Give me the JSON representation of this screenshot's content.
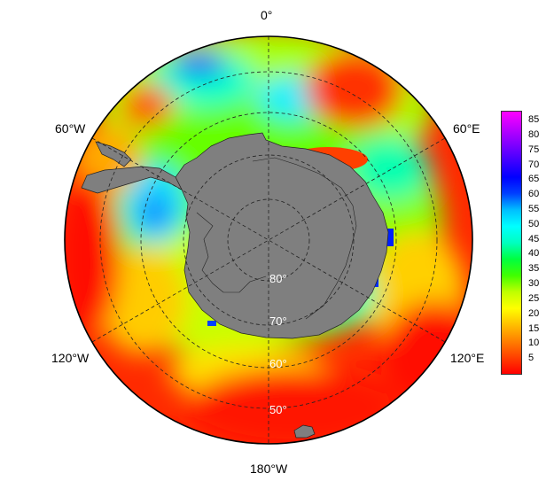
{
  "map": {
    "projection": "south-polar-stereographic",
    "ocean_fill_colormap": "rainbow (red low → magenta high)",
    "land_color": "#7f7f7f",
    "longitude_labels": {
      "top": "0°",
      "right_upper": "60°E",
      "right_lower": "120°E",
      "bottom": "180°W",
      "left_lower": "120°W",
      "left_upper": "60°W"
    },
    "latitude_labels": [
      "80°",
      "70°",
      "60°",
      "50°"
    ]
  },
  "colorbar": {
    "ticks": [
      "85",
      "80",
      "75",
      "70",
      "65",
      "60",
      "55",
      "50",
      "45",
      "40",
      "35",
      "30",
      "25",
      "20",
      "15",
      "10",
      "5"
    ],
    "min": 0,
    "max": 88,
    "colors": [
      "#ff0000",
      "#ff4000",
      "#ff8000",
      "#ffbf00",
      "#ffff00",
      "#bfff00",
      "#40ff00",
      "#00ff40",
      "#00ffbf",
      "#00ffff",
      "#00bfff",
      "#0040ff",
      "#0000ff",
      "#4000ff",
      "#8000ff",
      "#bf00ff",
      "#ff00ff"
    ]
  }
}
